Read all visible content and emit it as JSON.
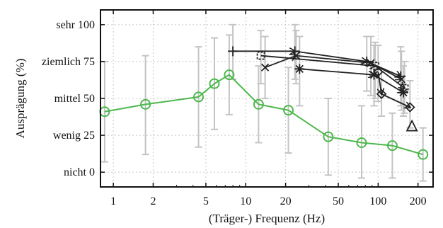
{
  "chart_data": {
    "type": "line",
    "xlabel": "(Träger-) Frequenz (Hz)",
    "ylabel": "Ausprägung (%)",
    "x_scale": "log",
    "xlim": [
      0.8,
      260
    ],
    "ylim": [
      -10,
      110
    ],
    "grid": true,
    "x_ticks": [
      {
        "value": 1,
        "label": "1"
      },
      {
        "value": 2,
        "label": "2"
      },
      {
        "value": 5,
        "label": "5"
      },
      {
        "value": 10,
        "label": "10"
      },
      {
        "value": 20,
        "label": "20"
      },
      {
        "value": 50,
        "label": "50"
      },
      {
        "value": 100,
        "label": "100"
      },
      {
        "value": 200,
        "label": "200"
      }
    ],
    "y_ticks": [
      {
        "value": 0,
        "label": "nicht 0"
      },
      {
        "value": 25,
        "label": "wenig 25"
      },
      {
        "value": 50,
        "label": "mittel 50"
      },
      {
        "value": 75,
        "label": "ziemlich 75"
      },
      {
        "value": 100,
        "label": "sehr 100"
      }
    ],
    "series": [
      {
        "marker": "circle",
        "color": "#4db84d",
        "points": [
          {
            "x": 0.86,
            "y": 41,
            "lo": 7,
            "hi": 75
          },
          {
            "x": 1.75,
            "y": 46,
            "lo": 12,
            "hi": 79
          },
          {
            "x": 4.4,
            "y": 51,
            "lo": 17,
            "hi": 85
          },
          {
            "x": 5.8,
            "y": 60,
            "lo": 29,
            "hi": 91
          },
          {
            "x": 7.5,
            "y": 66,
            "lo": 39,
            "hi": 93
          },
          {
            "x": 12.5,
            "y": 46,
            "lo": 20,
            "hi": 72
          },
          {
            "x": 21,
            "y": 42,
            "lo": 13,
            "hi": 71
          },
          {
            "x": 42,
            "y": 24,
            "lo": -2,
            "hi": 50
          },
          {
            "x": 75,
            "y": 20,
            "lo": -4,
            "hi": 45
          },
          {
            "x": 128,
            "y": 18,
            "lo": -4,
            "hi": 40
          },
          {
            "x": 218,
            "y": 12,
            "lo": -6,
            "hi": 30
          }
        ]
      },
      {
        "marker": "plus",
        "color": "#222222",
        "points": [
          {
            "x": 8,
            "y": 82,
            "lo": 63,
            "hi": 100
          },
          {
            "x": 23.5,
            "y": 82,
            "lo": 63,
            "hi": 100
          },
          {
            "x": 82,
            "y": 75,
            "lo": 55,
            "hi": 92
          },
          {
            "x": 148,
            "y": 65,
            "lo": 45,
            "hi": 85
          }
        ]
      },
      {
        "marker": "star",
        "color": "#222222",
        "points": [
          {
            "x": 25.5,
            "y": 70,
            "lo": 45,
            "hi": 92
          },
          {
            "x": 93,
            "y": 66,
            "lo": 45,
            "hi": 86
          },
          {
            "x": 155,
            "y": 54,
            "lo": 38,
            "hi": 72
          }
        ]
      },
      {
        "marker": "x",
        "color": "#222222",
        "points": [
          {
            "x": 14,
            "y": 71,
            "lo": 50,
            "hi": 92
          },
          {
            "x": 24,
            "y": 79,
            "lo": 60,
            "hi": 96
          },
          {
            "x": 88,
            "y": 74,
            "lo": 52,
            "hi": 92
          },
          {
            "x": 150,
            "y": 63,
            "lo": 42,
            "hi": 82
          }
        ]
      },
      {
        "marker": "square",
        "color": "#222222",
        "points": [
          {
            "x": 13,
            "y": 79,
            "lo": 60,
            "hi": 96
          },
          {
            "x": 95,
            "y": 72,
            "lo": 50,
            "hi": 88
          },
          {
            "x": 158,
            "y": 57,
            "lo": 40,
            "hi": 75
          }
        ]
      },
      {
        "marker": "diamond",
        "color": "#222222",
        "points": [
          {
            "x": 100,
            "y": 68,
            "lo": 48,
            "hi": 86
          },
          {
            "x": 106,
            "y": 53,
            "lo": 38,
            "hi": 70
          },
          {
            "x": 174,
            "y": 44,
            "lo": 30,
            "hi": 62
          }
        ]
      },
      {
        "marker": "triangle",
        "color": "#222222",
        "points": [
          {
            "x": 180,
            "y": 31,
            "lo": 31,
            "hi": 31
          }
        ]
      }
    ]
  }
}
